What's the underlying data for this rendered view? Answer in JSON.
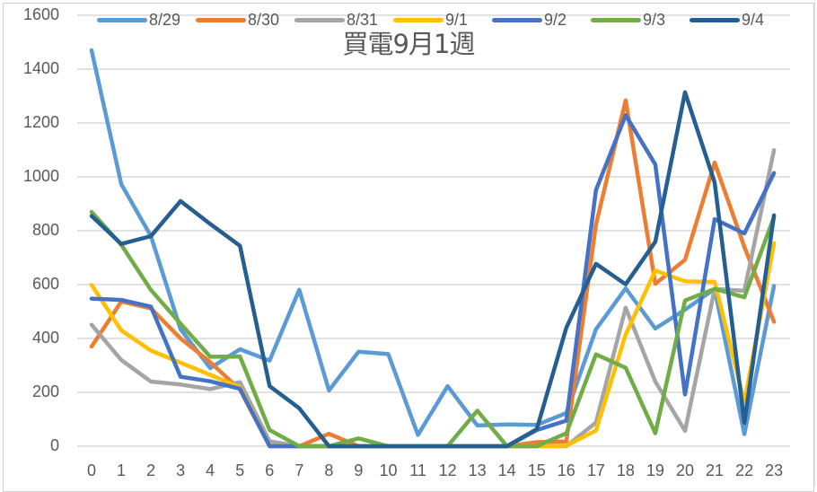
{
  "chart_data": {
    "type": "line",
    "title": "買電9月1週",
    "xlabel": "",
    "ylabel": "",
    "ylim": [
      0,
      1600
    ],
    "yticks": [
      "0",
      "200",
      "400",
      "600",
      "800",
      "1000",
      "1200",
      "1400",
      "1600"
    ],
    "grid": true,
    "legend_position": "top",
    "categories": [
      "0",
      "1",
      "2",
      "3",
      "4",
      "5",
      "6",
      "7",
      "8",
      "9",
      "10",
      "11",
      "12",
      "13",
      "14",
      "15",
      "16",
      "17",
      "18",
      "19",
      "20",
      "21",
      "22",
      "23"
    ],
    "series": [
      {
        "name": "8/29",
        "color": "#5B9BD5",
        "values": [
          1470,
          973,
          780,
          434,
          290,
          360,
          318,
          581,
          207,
          351,
          342,
          42,
          223,
          77,
          81,
          79,
          123,
          434,
          586,
          437,
          507,
          584,
          45,
          595
        ]
      },
      {
        "name": "8/30",
        "color": "#ED7D31",
        "values": [
          370,
          537,
          512,
          400,
          312,
          210,
          0,
          0,
          46,
          0,
          0,
          0,
          0,
          0,
          0,
          15,
          18,
          823,
          1284,
          603,
          692,
          1053,
          740,
          462
        ]
      },
      {
        "name": "8/31",
        "color": "#A5A5A5",
        "values": [
          451,
          320,
          240,
          229,
          212,
          238,
          18,
          0,
          0,
          0,
          0,
          0,
          0,
          0,
          0,
          0,
          0,
          88,
          514,
          240,
          57,
          584,
          577,
          1099
        ]
      },
      {
        "name": "9/1",
        "color": "#FFC000",
        "values": [
          599,
          430,
          355,
          310,
          265,
          218,
          0,
          0,
          0,
          0,
          0,
          0,
          0,
          0,
          0,
          0,
          2,
          58,
          415,
          652,
          612,
          610,
          163,
          754
        ]
      },
      {
        "name": "9/2",
        "color": "#4472C4",
        "values": [
          548,
          543,
          518,
          258,
          241,
          213,
          0,
          0,
          0,
          0,
          0,
          0,
          0,
          0,
          0,
          60,
          95,
          951,
          1229,
          1046,
          192,
          843,
          790,
          1014
        ]
      },
      {
        "name": "9/3",
        "color": "#70AD47",
        "values": [
          870,
          748,
          580,
          455,
          332,
          333,
          60,
          0,
          0,
          29,
          0,
          0,
          0,
          132,
          0,
          0,
          48,
          341,
          291,
          48,
          541,
          584,
          553,
          851
        ]
      },
      {
        "name": "9/4",
        "color": "#255E91",
        "values": [
          855,
          751,
          780,
          910,
          825,
          744,
          223,
          141,
          0,
          0,
          0,
          0,
          0,
          0,
          0,
          63,
          440,
          677,
          601,
          759,
          1314,
          979,
          87,
          857
        ]
      }
    ]
  },
  "legend": {
    "items": [
      {
        "label": "8/29",
        "color": "#5B9BD5"
      },
      {
        "label": "8/30",
        "color": "#ED7D31"
      },
      {
        "label": "8/31",
        "color": "#A5A5A5"
      },
      {
        "label": "9/1",
        "color": "#FFC000"
      },
      {
        "label": "9/2",
        "color": "#4472C4"
      },
      {
        "label": "9/3",
        "color": "#70AD47"
      },
      {
        "label": "9/4",
        "color": "#255E91"
      }
    ]
  },
  "colors": {
    "gridline": "#D9D9D9",
    "axis_text": "#595959"
  }
}
